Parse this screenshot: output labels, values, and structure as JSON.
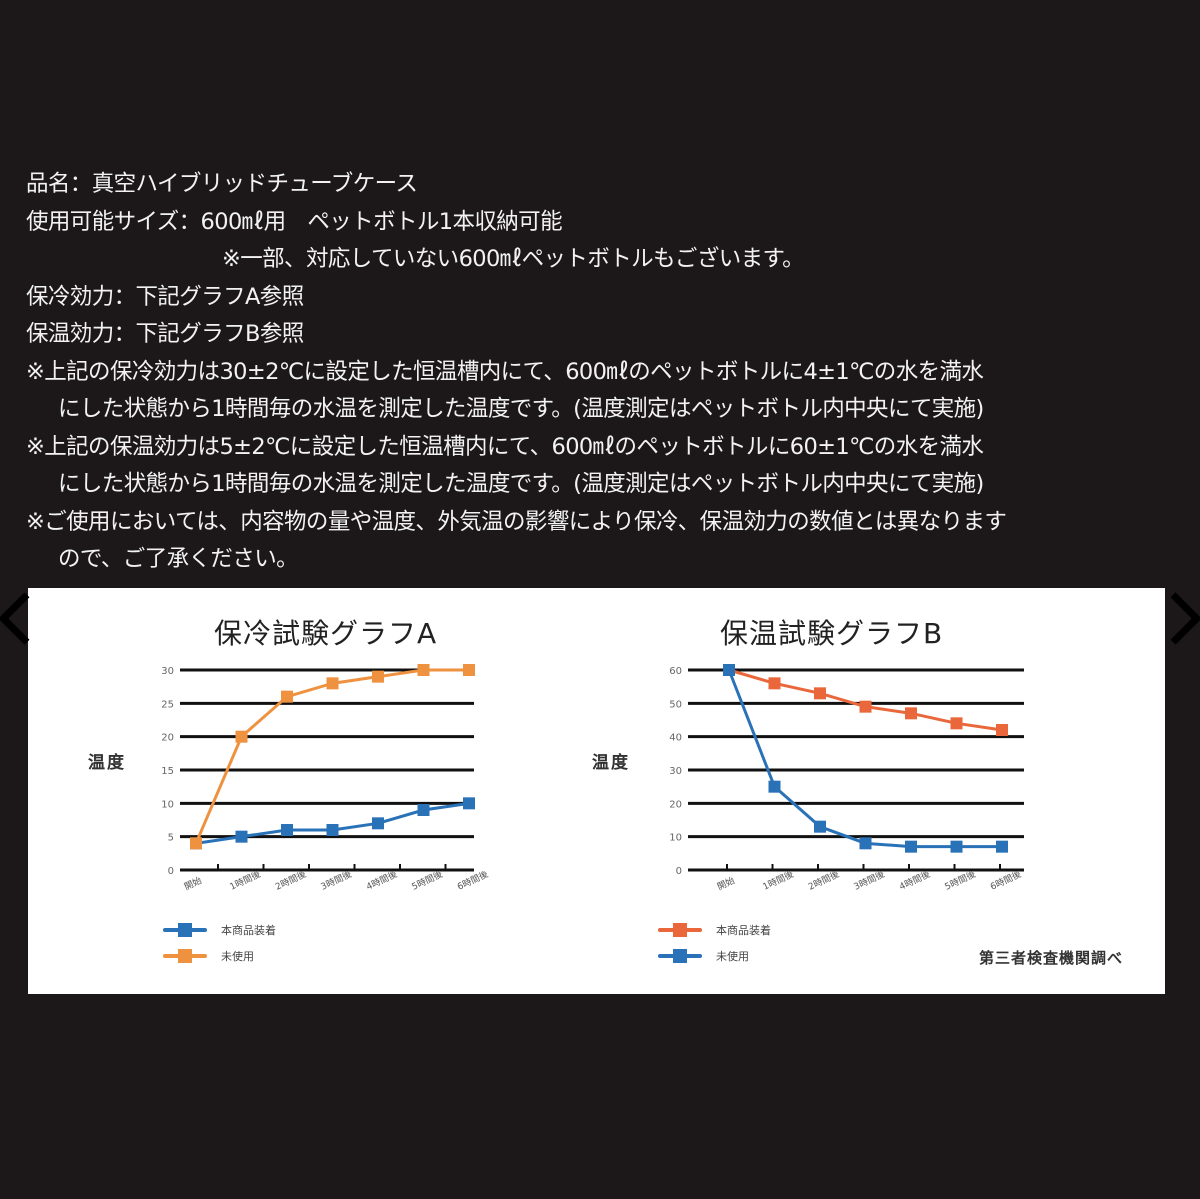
{
  "specs": {
    "lines": [
      "品名：真空ハイブリッドチューブケース",
      "使用可能サイズ：600㎖用　ペットボトル1本収納可能",
      "※一部、対応していない600㎖ペットボトルもございます。",
      "保冷効力：下記グラフA参照",
      "保温効力：下記グラフB参照",
      "※上記の保冷効力は30±2℃に設定した恒温槽内にて、600㎖のペットボトルに4±1℃の水を満水",
      "にした状態から1時間毎の水温を測定した温度です。(温度測定はペットボトル内中央にて実施)",
      "※上記の保温効力は5±2℃に設定した恒温槽内にて、600㎖のペットボトルに60±1℃の水を満水",
      "にした状態から1時間毎の水温を測定した温度です。(温度測定はペットボトル内中央にて実施)",
      "※ご使用においては、内容物の量や温度、外気温の影響により保冷、保温効力の数値とは異なります",
      "ので、ご了承ください。"
    ]
  },
  "colors": {
    "background": "#1c1819",
    "text": "#f2f2f2",
    "panel": "#ffffff",
    "blue": "#2a72b8",
    "orange": "#ef9240",
    "red_orange": "#e9673a"
  },
  "source_note": "第三者検査機関調べ",
  "chart_data": [
    {
      "type": "line",
      "title": "保冷試験グラフA",
      "xlabel": "",
      "ylabel": "温度",
      "categories": [
        "開始",
        "1時間後",
        "2時間後",
        "3時間後",
        "4時間後",
        "5時間後",
        "6時間後"
      ],
      "yticks": [
        0,
        5,
        10,
        15,
        20,
        25,
        30
      ],
      "ylim": [
        0,
        30
      ],
      "grid": true,
      "legend_position": "bottom-left",
      "series": [
        {
          "name": "本商品装着",
          "color": "#2a72b8",
          "marker": "square",
          "values": [
            4,
            5,
            6,
            6,
            7,
            9,
            10
          ]
        },
        {
          "name": "未使用",
          "color": "#ef9240",
          "marker": "square",
          "values": [
            4,
            20,
            26,
            28,
            29,
            30,
            30
          ]
        }
      ]
    },
    {
      "type": "line",
      "title": "保温試験グラフB",
      "xlabel": "",
      "ylabel": "温度",
      "categories": [
        "開始",
        "1時間後",
        "2時間後",
        "3時間後",
        "4時間後",
        "5時間後",
        "6時間後"
      ],
      "yticks": [
        0,
        10,
        20,
        30,
        40,
        50,
        60
      ],
      "ylim": [
        0,
        60
      ],
      "grid": true,
      "legend_position": "bottom-left",
      "series": [
        {
          "name": "本商品装着",
          "color": "#e9673a",
          "marker": "square",
          "values": [
            60,
            56,
            53,
            49,
            47,
            44,
            42
          ]
        },
        {
          "name": "未使用",
          "color": "#2a72b8",
          "marker": "square",
          "values": [
            60,
            25,
            13,
            8,
            7,
            7,
            7
          ]
        }
      ]
    }
  ]
}
